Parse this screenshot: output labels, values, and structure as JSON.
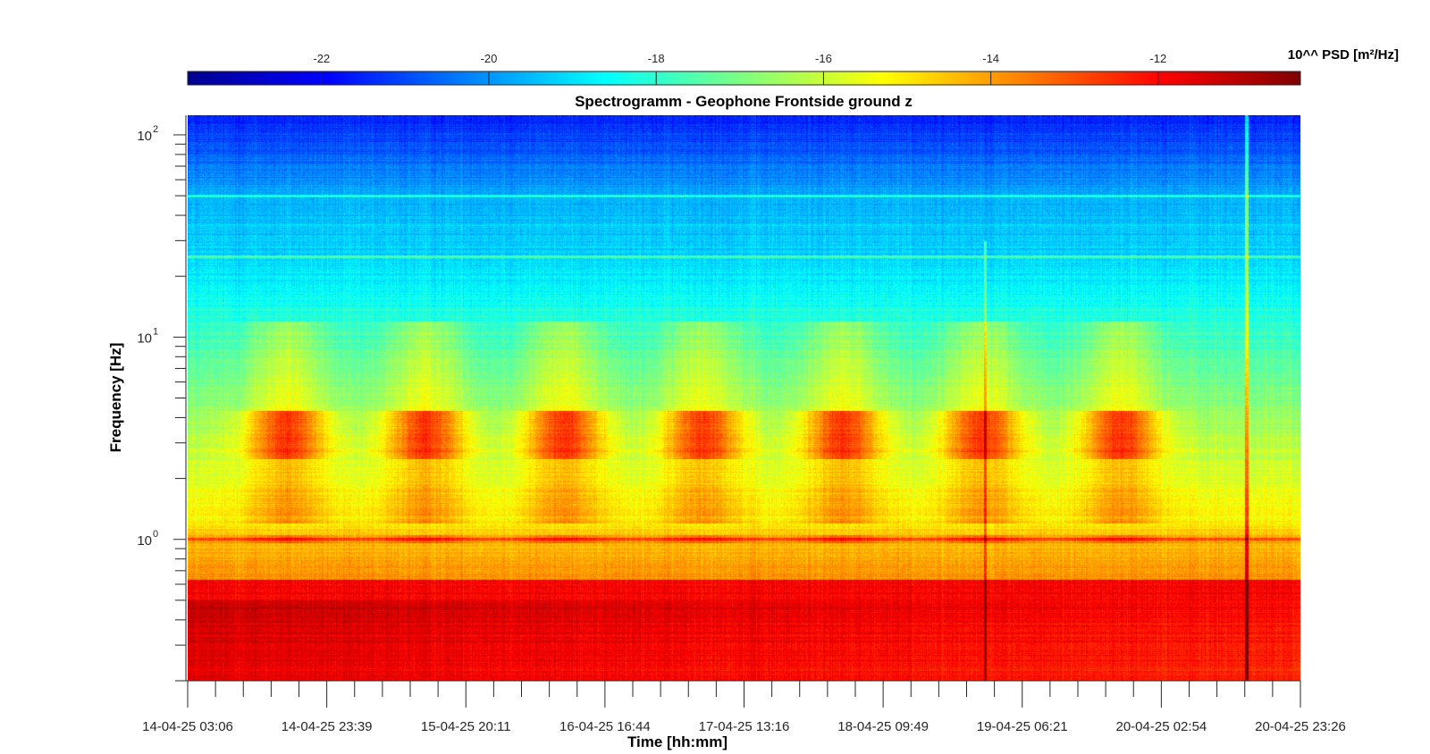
{
  "chart_data": {
    "type": "heatmap",
    "title": "Spectrogramm - Geophone Frontside ground z",
    "xlabel": "Time [hh:mm]",
    "ylabel": "Frequency [Hz]",
    "x_tick_labels": [
      "14-04-25 03:06",
      "14-04-25 23:39",
      "15-04-25 20:11",
      "16-04-25 16:44",
      "17-04-25 13:16",
      "18-04-25 09:49",
      "19-04-25 06:21",
      "20-04-25 02:54",
      "20-04-25 23:26"
    ],
    "y_scale": "log",
    "y_tick_labels": [
      {
        "base": "10",
        "exp": "0",
        "value": 1
      },
      {
        "base": "10",
        "exp": "1",
        "value": 10
      },
      {
        "base": "10",
        "exp": "2",
        "value": 100
      }
    ],
    "ylim": [
      0.2,
      125
    ],
    "colorbar": {
      "label": "10^^ PSD [m²/Hz]",
      "ticks": [
        -22,
        -20,
        -18,
        -16,
        -14,
        -12
      ],
      "range": [
        -23.6,
        -10.3
      ],
      "colormap": "jet"
    },
    "daily_activity_bands": {
      "frequency_range_hz": [
        2.5,
        4.0
      ],
      "peak_value": -13.5,
      "count": 7
    },
    "persistent_lines_hz": [
      1.0,
      25.0,
      50.0
    ],
    "low_frequency_level": -12.5,
    "high_frequency_level": -21.5
  }
}
